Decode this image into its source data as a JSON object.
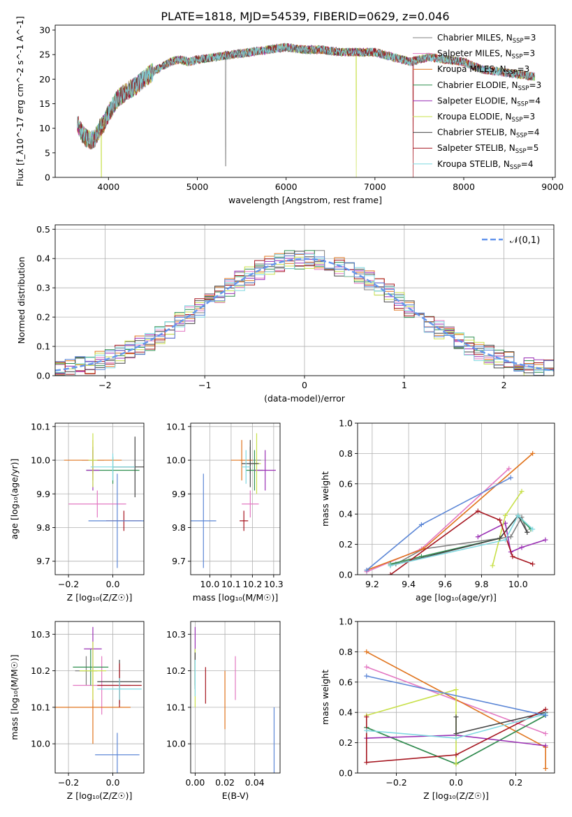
{
  "figure_title": "PLATE=1818, MJD=54539, FIBERID=0629, z=0.046",
  "series": [
    {
      "name": "Chabrier MILES",
      "nssp": "3",
      "color": "#7f7f7f"
    },
    {
      "name": "Salpeter MILES",
      "nssp": "3",
      "color": "#e377c2"
    },
    {
      "name": "Kroupa MILES",
      "nssp": "3",
      "color": "#e0731c"
    },
    {
      "name": "Chabrier ELODIE",
      "nssp": "3",
      "color": "#2f8f4f"
    },
    {
      "name": "Salpeter ELODIE",
      "nssp": "4",
      "color": "#9a2fb4"
    },
    {
      "name": "Kroupa ELODIE",
      "nssp": "3",
      "color": "#c8e04a"
    },
    {
      "name": "Chabrier STELIB",
      "nssp": "4",
      "color": "#444444"
    },
    {
      "name": "Salpeter STELIB",
      "nssp": "5",
      "color": "#a5141e"
    },
    {
      "name": "Kroupa STELIB",
      "nssp": "4",
      "color": "#7fd8e0"
    }
  ],
  "extra_color": "#5b86d6",
  "chart_data": [
    {
      "id": "spectrum",
      "type": "line",
      "xlabel": "wavelength [Angstrom, rest frame]",
      "ylabel": "Flux [f_λ10^-17 erg cm^-2 s^-1 A^-1]",
      "xlim": [
        3400,
        9030
      ],
      "ylim": [
        0,
        31
      ],
      "xticks": [
        4000,
        5000,
        6000,
        7000,
        8000,
        9000
      ],
      "yticks": [
        0,
        5,
        10,
        15,
        20,
        25,
        30
      ],
      "legend_position": "upper-right",
      "continuum_x": [
        3650,
        3700,
        3750,
        3800,
        3850,
        3900,
        3950,
        4000,
        4100,
        4200,
        4300,
        4400,
        4500,
        4600,
        4700,
        4800,
        4900,
        5000,
        5200,
        5400,
        5600,
        5800,
        6000,
        6200,
        6400,
        6600,
        6800,
        7000,
        7200,
        7400,
        7600,
        7800,
        8000,
        8200,
        8400,
        8600,
        8800
      ],
      "continuum_y": [
        11,
        9,
        8,
        7.5,
        8,
        10,
        11,
        13,
        16,
        17.5,
        18.5,
        20,
        21.5,
        22.5,
        23.5,
        24,
        23.5,
        24,
        24.5,
        25,
        25.5,
        26,
        26.5,
        26,
        26,
        25.5,
        25.5,
        25.5,
        24.5,
        23.5,
        24.5,
        24,
        23.5,
        22,
        21.5,
        21,
        20.5
      ],
      "noise": 0.9,
      "dips": [
        {
          "x": 3920,
          "y": 0,
          "series": 5
        },
        {
          "x": 5320,
          "y": 2.3,
          "series": 0
        },
        {
          "x": 6790,
          "y": 0,
          "series": 5
        },
        {
          "x": 7430,
          "y": 0,
          "series": 7
        }
      ]
    },
    {
      "id": "residuals",
      "type": "step",
      "xlabel": "(data-model)/error",
      "ylabel": "Normed distribution",
      "xlim": [
        -2.5,
        2.5
      ],
      "ylim": [
        0,
        0.515
      ],
      "xticks": [
        -2,
        -1,
        0,
        1,
        2
      ],
      "yticks": [
        0.0,
        0.1,
        0.2,
        0.3,
        0.4,
        0.5
      ],
      "bin_width": 0.1,
      "grid": true,
      "reference_label": "𝒩(0,1)",
      "reference_color": "#6495ed"
    },
    {
      "id": "age_vs_Z",
      "type": "errorbar",
      "xlabel": "Z [log₁₀(Z/Z☉)]",
      "ylabel": "age  [log₁₀(age/yr)]",
      "xlim": [
        -0.26,
        0.14
      ],
      "ylim": [
        9.66,
        10.11
      ],
      "xticks": [
        -0.2,
        0.0
      ],
      "yticks": [
        9.7,
        9.8,
        9.9,
        10.0,
        10.1
      ],
      "points": [
        {
          "c": 0,
          "x": -0.09,
          "y": 10.0,
          "xe": 0.05,
          "ye": 0.04
        },
        {
          "c": 1,
          "x": -0.07,
          "y": 9.87,
          "xe": 0.13,
          "ye": 0.04
        },
        {
          "c": 2,
          "x": -0.09,
          "y": 10.0,
          "xe": 0.13,
          "ye": 0.06
        },
        {
          "c": 3,
          "x": 0.0,
          "y": 9.97,
          "xe": 0.12,
          "ye": 0.04
        },
        {
          "c": 4,
          "x": -0.09,
          "y": 9.97,
          "xe": 0.03,
          "ye": 0.06
        },
        {
          "c": 5,
          "x": -0.09,
          "y": 10.0,
          "xe": 0.02,
          "ye": 0.08
        },
        {
          "c": 6,
          "x": 0.1,
          "y": 9.98,
          "xe": 0.1,
          "ye": 0.09
        },
        {
          "c": 7,
          "x": 0.05,
          "y": 9.82,
          "xe": 0.08,
          "ye": 0.03
        },
        {
          "c": 8,
          "x": 0.0,
          "y": 9.98,
          "xe": 0.1,
          "ye": 0.04
        },
        {
          "c": 9,
          "x": 0.02,
          "y": 9.82,
          "xe": 0.13,
          "ye": 0.14
        }
      ]
    },
    {
      "id": "age_vs_mass",
      "type": "errorbar",
      "xlabel": "mass [log₁₀(M/M☉)]",
      "ylabel": "",
      "xlim": [
        9.91,
        10.33
      ],
      "ylim": [
        9.66,
        10.11
      ],
      "xticks": [
        10.0,
        10.1,
        10.2,
        10.3
      ],
      "yticks": [
        9.7,
        9.8,
        9.9,
        10.0,
        10.1
      ],
      "points": [
        {
          "c": 0,
          "x": 10.19,
          "y": 10.0,
          "xe": 0.05,
          "ye": 0.04
        },
        {
          "c": 1,
          "x": 10.19,
          "y": 9.87,
          "xe": 0.04,
          "ye": 0.04
        },
        {
          "c": 2,
          "x": 10.15,
          "y": 10.0,
          "xe": 0.05,
          "ye": 0.06
        },
        {
          "c": 3,
          "x": 10.21,
          "y": 9.97,
          "xe": 0.04,
          "ye": 0.06
        },
        {
          "c": 4,
          "x": 10.26,
          "y": 9.97,
          "xe": 0.05,
          "ye": 0.06
        },
        {
          "c": 5,
          "x": 10.22,
          "y": 9.99,
          "xe": 0.02,
          "ye": 0.09
        },
        {
          "c": 6,
          "x": 10.19,
          "y": 9.99,
          "xe": 0.04,
          "ye": 0.07
        },
        {
          "c": 7,
          "x": 10.16,
          "y": 9.82,
          "xe": 0.02,
          "ye": 0.03
        },
        {
          "c": 8,
          "x": 10.17,
          "y": 9.98,
          "xe": 0.02,
          "ye": 0.05
        },
        {
          "c": 9,
          "x": 9.97,
          "y": 9.82,
          "xe": 0.06,
          "ye": 0.14
        }
      ]
    },
    {
      "id": "weight_vs_age",
      "type": "line",
      "xlabel": "age  [log₁₀(age/yr)]",
      "ylabel": "mass weight",
      "xlim": [
        9.12,
        10.2
      ],
      "ylim": [
        0,
        1
      ],
      "xticks": [
        9.2,
        9.4,
        9.6,
        9.8,
        10.0
      ],
      "yticks": [
        0.0,
        0.2,
        0.4,
        0.6,
        0.8,
        1.0
      ],
      "lines": [
        {
          "c": 0,
          "x": [
            9.33,
            9.48,
            9.96,
            10.02,
            10.05
          ],
          "y": [
            0.07,
            0.17,
            0.25,
            0.38,
            0.28
          ]
        },
        {
          "c": 1,
          "x": [
            9.17,
            9.47,
            9.95
          ],
          "y": [
            0.02,
            0.17,
            0.7
          ]
        },
        {
          "c": 2,
          "x": [
            9.17,
            9.48,
            10.08
          ],
          "y": [
            0.03,
            0.17,
            0.8
          ]
        },
        {
          "c": 3,
          "x": [
            9.3,
            9.47,
            9.9,
            10.0,
            10.07
          ],
          "y": [
            0.07,
            0.12,
            0.24,
            0.39,
            0.3
          ]
        },
        {
          "c": 4,
          "x": [
            9.78,
            9.93,
            9.96,
            10.02,
            10.15
          ],
          "y": [
            0.25,
            0.34,
            0.15,
            0.18,
            0.23
          ]
        },
        {
          "c": 5,
          "x": [
            9.86,
            9.93,
            10.02
          ],
          "y": [
            0.06,
            0.39,
            0.55
          ]
        },
        {
          "c": 6,
          "x": [
            9.3,
            9.9,
            10.0,
            10.05
          ],
          "y": [
            0.06,
            0.24,
            0.39,
            0.28
          ]
        },
        {
          "c": 7,
          "x": [
            9.3,
            9.78,
            9.9,
            9.97,
            10.08
          ],
          "y": [
            0.0,
            0.42,
            0.36,
            0.12,
            0.07
          ]
        },
        {
          "c": 8,
          "x": [
            9.3,
            9.93,
            10.0,
            10.08
          ],
          "y": [
            0.06,
            0.23,
            0.39,
            0.3
          ]
        },
        {
          "c": 9,
          "x": [
            9.17,
            9.47,
            9.96
          ],
          "y": [
            0.03,
            0.33,
            0.64
          ]
        }
      ]
    },
    {
      "id": "mass_vs_Z",
      "type": "errorbar",
      "xlabel": "Z [log₁₀(Z/Z☉)]",
      "ylabel": "mass [log₁₀(M/M☉)]",
      "xlim": [
        -0.26,
        0.14
      ],
      "ylim": [
        9.92,
        10.335
      ],
      "xticks": [
        -0.2,
        0.0
      ],
      "yticks": [
        10.0,
        10.1,
        10.2,
        10.3
      ],
      "points": [
        {
          "c": 0,
          "x": -0.12,
          "y": 10.2,
          "xe": 0.05,
          "ye": 0.04
        },
        {
          "c": 1,
          "x": -0.05,
          "y": 10.16,
          "xe": 0.13,
          "ye": 0.08
        },
        {
          "c": 2,
          "x": -0.09,
          "y": 10.1,
          "xe": 0.17,
          "ye": 0.1
        },
        {
          "c": 3,
          "x": -0.1,
          "y": 10.21,
          "xe": 0.08,
          "ye": 0.05
        },
        {
          "c": 4,
          "x": -0.09,
          "y": 10.26,
          "xe": 0.04,
          "ye": 0.06
        },
        {
          "c": 5,
          "x": -0.09,
          "y": 10.2,
          "xe": 0.06,
          "ye": 0.08
        },
        {
          "c": 6,
          "x": 0.03,
          "y": 10.17,
          "xe": 0.1,
          "ye": 0.06
        },
        {
          "c": 7,
          "x": 0.03,
          "y": 10.16,
          "xe": 0.1,
          "ye": 0.06
        },
        {
          "c": 8,
          "x": 0.03,
          "y": 10.15,
          "xe": 0.1,
          "ye": 0.03
        },
        {
          "c": 9,
          "x": 0.02,
          "y": 9.97,
          "xe": 0.1,
          "ye": 0.06
        }
      ]
    },
    {
      "id": "mass_vs_EBV",
      "type": "errorbar",
      "xlabel": "E(B-V)",
      "ylabel": "",
      "xlim": [
        -0.003,
        0.057
      ],
      "ylim": [
        9.92,
        10.335
      ],
      "xticks": [
        0.0,
        0.02,
        0.04
      ],
      "yticks": [
        10.0,
        10.1,
        10.2,
        10.3
      ],
      "points": [
        {
          "c": 0,
          "x": 0.0,
          "y": 10.2,
          "xe": 0,
          "ye": 0.04
        },
        {
          "c": 1,
          "x": 0.027,
          "y": 10.18,
          "xe": 0,
          "ye": 0.06
        },
        {
          "c": 2,
          "x": 0.02,
          "y": 10.12,
          "xe": 0,
          "ye": 0.08
        },
        {
          "c": 3,
          "x": 0.0,
          "y": 10.21,
          "xe": 0,
          "ye": 0.05
        },
        {
          "c": 4,
          "x": 0.0,
          "y": 10.27,
          "xe": 0,
          "ye": 0.05
        },
        {
          "c": 5,
          "x": 0.0,
          "y": 10.18,
          "xe": 0,
          "ye": 0.08
        },
        {
          "c": 6,
          "x": 0.0,
          "y": 10.2,
          "xe": 0,
          "ye": 0.05
        },
        {
          "c": 7,
          "x": 0.007,
          "y": 10.16,
          "xe": 0,
          "ye": 0.05
        },
        {
          "c": 8,
          "x": 0.0,
          "y": 10.18,
          "xe": 0,
          "ye": 0.05
        },
        {
          "c": 9,
          "x": 0.053,
          "y": 10.01,
          "xe": 0,
          "ye": 0.09
        }
      ]
    },
    {
      "id": "weight_vs_Z",
      "type": "line",
      "xlabel": "Z [log₁₀(Z/Z☉)]",
      "ylabel": "mass weight",
      "xlim": [
        -0.33,
        0.33
      ],
      "ylim": [
        0,
        1
      ],
      "xticks": [
        -0.2,
        0.0,
        0.2
      ],
      "yticks": [
        0.0,
        0.2,
        0.4,
        0.6,
        0.8,
        1.0
      ],
      "lines": [
        {
          "c": 0,
          "x": [
            -0.3,
            0.0,
            0.3
          ],
          "y": [
            0.3,
            0.06,
            0.38
          ]
        },
        {
          "c": 1,
          "x": [
            -0.3,
            0.3
          ],
          "y": [
            0.7,
            0.26
          ]
        },
        {
          "c": 2,
          "x": [
            -0.3,
            0.3,
            0.3
          ],
          "y": [
            0.8,
            0.17,
            0.03
          ]
        },
        {
          "c": 3,
          "x": [
            -0.3,
            0.0,
            0.3
          ],
          "y": [
            0.3,
            0.06,
            0.38
          ]
        },
        {
          "c": 4,
          "x": [
            -0.3,
            0.0,
            0.3
          ],
          "y": [
            0.23,
            0.25,
            0.18
          ]
        },
        {
          "c": 5,
          "x": [
            -0.3,
            0.0,
            0.0
          ],
          "y": [
            0.38,
            0.55,
            0.06
          ]
        },
        {
          "c": 6,
          "x": [
            0.0,
            0.0,
            0.3
          ],
          "y": [
            0.37,
            0.26,
            0.4
          ]
        },
        {
          "c": 7,
          "x": [
            -0.3,
            -0.3,
            0.0,
            0.3
          ],
          "y": [
            0.37,
            0.07,
            0.12,
            0.42
          ]
        },
        {
          "c": 8,
          "x": [
            -0.3,
            0.0,
            0.3
          ],
          "y": [
            0.28,
            0.23,
            0.39
          ]
        },
        {
          "c": 9,
          "x": [
            -0.3,
            0.3
          ],
          "y": [
            0.64,
            0.38
          ]
        }
      ]
    }
  ]
}
